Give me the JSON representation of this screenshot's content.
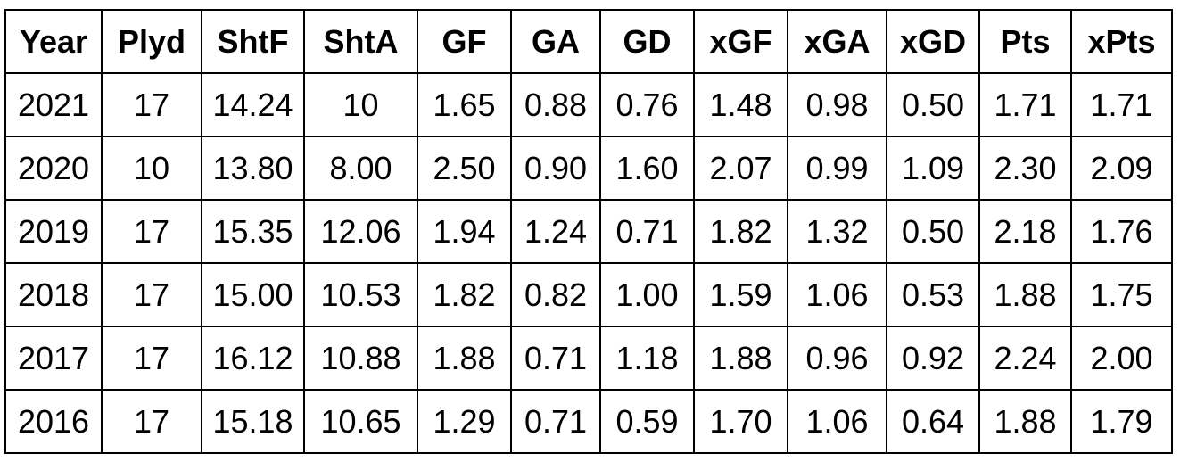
{
  "table": {
    "header": [
      "Year",
      "Plyd",
      "ShtF",
      "ShtA",
      "GF",
      "GA",
      "GD",
      "xGF",
      "xGA",
      "xGD",
      "Pts",
      "xPts"
    ],
    "rows": [
      [
        "2021",
        "17",
        "14.24",
        "10",
        "1.65",
        "0.88",
        "0.76",
        "1.48",
        "0.98",
        "0.50",
        "1.71",
        "1.71"
      ],
      [
        "2020",
        "10",
        "13.80",
        "8.00",
        "2.50",
        "0.90",
        "1.60",
        "2.07",
        "0.99",
        "1.09",
        "2.30",
        "2.09"
      ],
      [
        "2019",
        "17",
        "15.35",
        "12.06",
        "1.94",
        "1.24",
        "0.71",
        "1.82",
        "1.32",
        "0.50",
        "2.18",
        "1.76"
      ],
      [
        "2018",
        "17",
        "15.00",
        "10.53",
        "1.82",
        "0.82",
        "1.00",
        "1.59",
        "1.06",
        "0.53",
        "1.88",
        "1.75"
      ],
      [
        "2017",
        "17",
        "16.12",
        "10.88",
        "1.88",
        "0.71",
        "1.18",
        "1.88",
        "0.96",
        "0.92",
        "2.24",
        "2.00"
      ],
      [
        "2016",
        "17",
        "15.18",
        "10.65",
        "1.29",
        "0.71",
        "0.59",
        "1.70",
        "1.06",
        "0.64",
        "1.88",
        "1.79"
      ]
    ]
  }
}
